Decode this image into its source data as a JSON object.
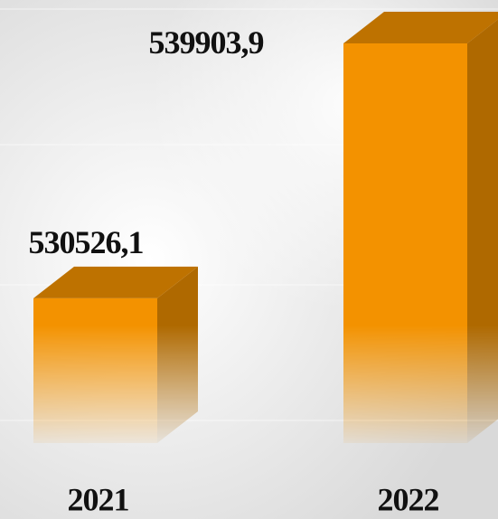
{
  "chart_data": {
    "type": "bar3d",
    "categories": [
      "2021",
      "2022"
    ],
    "values": [
      530526.1,
      539903.9
    ],
    "value_labels": [
      "530526,1",
      "539903,9"
    ],
    "color": "#f39200",
    "ylim": [
      525200,
      541500
    ]
  }
}
